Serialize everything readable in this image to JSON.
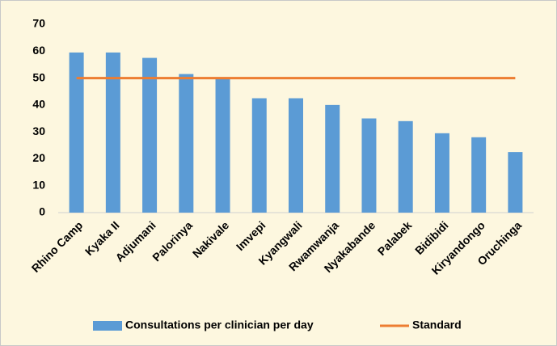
{
  "chart_data": {
    "type": "bar_line",
    "categories": [
      "Rhino Camp",
      "Kyaka II",
      "Adjumani",
      "Palorinya",
      "Nakivale",
      "Imvepi",
      "Kyangwali",
      "Rwamwanja",
      "Nyakabande",
      "Palabek",
      "Bidibidi",
      "Kiryandongo",
      "Oruchinga"
    ],
    "series": [
      {
        "name": "Consultations per clinician per day",
        "type": "bar",
        "color": "#5b9bd5",
        "values": [
          59.5,
          59.5,
          57.5,
          51.5,
          50,
          42.5,
          42.5,
          40,
          35,
          34,
          29.5,
          28,
          22.5
        ]
      },
      {
        "name": "Standard",
        "type": "line",
        "color": "#ed7d31",
        "values": [
          50,
          50,
          50,
          50,
          50,
          50,
          50,
          50,
          50,
          50,
          50,
          50,
          50
        ]
      }
    ],
    "ylim": [
      0,
      70
    ],
    "yticks": [
      0,
      10,
      20,
      30,
      40,
      50,
      60,
      70
    ],
    "legend": "bottom"
  }
}
